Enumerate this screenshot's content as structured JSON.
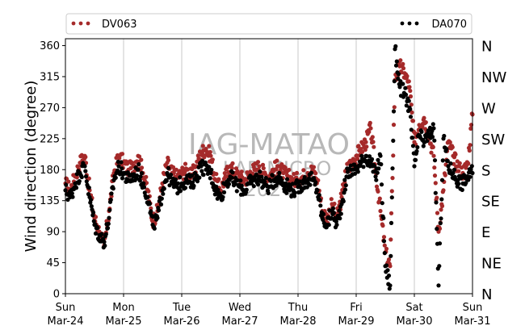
{
  "chart_data": {
    "type": "scatter",
    "title": "",
    "ylabel": "Wind direction (degree)",
    "ylim": [
      0,
      370
    ],
    "yticks": [
      0,
      45,
      90,
      135,
      180,
      225,
      270,
      315,
      360
    ],
    "compass_labels": [
      {
        "value": 0,
        "label": "N"
      },
      {
        "value": 45,
        "label": "NE"
      },
      {
        "value": 90,
        "label": "E"
      },
      {
        "value": 135,
        "label": "SE"
      },
      {
        "value": 180,
        "label": "S"
      },
      {
        "value": 225,
        "label": "SW"
      },
      {
        "value": 270,
        "label": "W"
      },
      {
        "value": 315,
        "label": "NW"
      },
      {
        "value": 360,
        "label": "N"
      }
    ],
    "x_ticks": [
      {
        "day": "Sun",
        "date": "Mar-24"
      },
      {
        "day": "Mon",
        "date": "Mar-25"
      },
      {
        "day": "Tue",
        "date": "Mar-26"
      },
      {
        "day": "Wed",
        "date": "Mar-27"
      },
      {
        "day": "Thu",
        "date": "Mar-28"
      },
      {
        "day": "Fri",
        "date": "Mar-29"
      },
      {
        "day": "Sat",
        "date": "Mar-30"
      },
      {
        "day": "Sun",
        "date": "Mar-31"
      }
    ],
    "xlim": [
      "2024-03-24 00:00",
      "2024-03-31 00:00"
    ],
    "grid": "vertical",
    "legend_position": "top",
    "watermark": [
      "IAG-MATAO",
      "LAB MICRO",
      "2024"
    ],
    "series": [
      {
        "name": "DV063",
        "color": "#a52a2a",
        "points": [
          [
            "2024-03-24 00:00",
            160
          ],
          [
            "2024-03-24 02:00",
            150
          ],
          [
            "2024-03-24 04:00",
            170
          ],
          [
            "2024-03-24 06:00",
            190
          ],
          [
            "2024-03-24 08:00",
            200
          ],
          [
            "2024-03-24 10:00",
            150
          ],
          [
            "2024-03-24 12:00",
            110
          ],
          [
            "2024-03-24 14:00",
            90
          ],
          [
            "2024-03-24 16:00",
            70
          ],
          [
            "2024-03-24 18:00",
            120
          ],
          [
            "2024-03-24 20:00",
            175
          ],
          [
            "2024-03-24 22:00",
            200
          ],
          [
            "2024-03-25 00:00",
            190
          ],
          [
            "2024-03-25 02:00",
            180
          ],
          [
            "2024-03-25 04:00",
            185
          ],
          [
            "2024-03-25 06:00",
            200
          ],
          [
            "2024-03-25 08:00",
            175
          ],
          [
            "2024-03-25 10:00",
            150
          ],
          [
            "2024-03-25 12:00",
            105
          ],
          [
            "2024-03-25 14:00",
            120
          ],
          [
            "2024-03-25 16:00",
            160
          ],
          [
            "2024-03-25 18:00",
            190
          ],
          [
            "2024-03-25 20:00",
            175
          ],
          [
            "2024-03-25 22:00",
            170
          ],
          [
            "2024-03-26 00:00",
            175
          ],
          [
            "2024-03-26 02:00",
            180
          ],
          [
            "2024-03-26 04:00",
            170
          ],
          [
            "2024-03-26 06:00",
            185
          ],
          [
            "2024-03-26 08:00",
            205
          ],
          [
            "2024-03-26 10:00",
            210
          ],
          [
            "2024-03-26 12:00",
            200
          ],
          [
            "2024-03-26 14:00",
            165
          ],
          [
            "2024-03-26 16:00",
            150
          ],
          [
            "2024-03-26 18:00",
            170
          ],
          [
            "2024-03-26 20:00",
            185
          ],
          [
            "2024-03-26 22:00",
            175
          ],
          [
            "2024-03-27 00:00",
            170
          ],
          [
            "2024-03-27 02:00",
            165
          ],
          [
            "2024-03-27 04:00",
            175
          ],
          [
            "2024-03-27 06:00",
            180
          ],
          [
            "2024-03-27 08:00",
            185
          ],
          [
            "2024-03-27 10:00",
            175
          ],
          [
            "2024-03-27 12:00",
            170
          ],
          [
            "2024-03-27 14:00",
            180
          ],
          [
            "2024-03-27 16:00",
            185
          ],
          [
            "2024-03-27 18:00",
            175
          ],
          [
            "2024-03-27 20:00",
            170
          ],
          [
            "2024-03-27 22:00",
            165
          ],
          [
            "2024-03-28 00:00",
            165
          ],
          [
            "2024-03-28 02:00",
            170
          ],
          [
            "2024-03-28 04:00",
            175
          ],
          [
            "2024-03-28 06:00",
            180
          ],
          [
            "2024-03-28 08:00",
            165
          ],
          [
            "2024-03-28 10:00",
            120
          ],
          [
            "2024-03-28 12:00",
            110
          ],
          [
            "2024-03-28 14:00",
            130
          ],
          [
            "2024-03-28 16:00",
            110
          ],
          [
            "2024-03-28 18:00",
            140
          ],
          [
            "2024-03-28 20:00",
            180
          ],
          [
            "2024-03-28 22:00",
            190
          ],
          [
            "2024-03-29 00:00",
            200
          ],
          [
            "2024-03-29 02:00",
            210
          ],
          [
            "2024-03-29 04:00",
            220
          ],
          [
            "2024-03-29 06:00",
            240
          ],
          [
            "2024-03-29 08:00",
            180
          ],
          [
            "2024-03-29 10:00",
            120
          ],
          [
            "2024-03-29 12:00",
            60
          ],
          [
            "2024-03-29 14:00",
            40
          ],
          [
            "2024-03-29 16:00",
            310
          ],
          [
            "2024-03-29 18:00",
            330
          ],
          [
            "2024-03-29 20:00",
            320
          ],
          [
            "2024-03-29 22:00",
            300
          ],
          [
            "2024-03-30 00:00",
            220
          ],
          [
            "2024-03-30 02:00",
            245
          ],
          [
            "2024-03-30 04:00",
            255
          ],
          [
            "2024-03-30 06:00",
            230
          ],
          [
            "2024-03-30 08:00",
            200
          ],
          [
            "2024-03-30 10:00",
            90
          ],
          [
            "2024-03-30 12:00",
            150
          ],
          [
            "2024-03-30 14:00",
            220
          ],
          [
            "2024-03-30 16:00",
            200
          ],
          [
            "2024-03-30 18:00",
            185
          ],
          [
            "2024-03-30 20:00",
            175
          ],
          [
            "2024-03-30 22:00",
            190
          ],
          [
            "2024-03-31 00:00",
            260
          ]
        ]
      },
      {
        "name": "DA070",
        "color": "#000000",
        "points": [
          [
            "2024-03-24 00:00",
            150
          ],
          [
            "2024-03-24 02:00",
            140
          ],
          [
            "2024-03-24 04:00",
            160
          ],
          [
            "2024-03-24 06:00",
            175
          ],
          [
            "2024-03-24 08:00",
            185
          ],
          [
            "2024-03-24 10:00",
            140
          ],
          [
            "2024-03-24 12:00",
            100
          ],
          [
            "2024-03-24 14:00",
            85
          ],
          [
            "2024-03-24 16:00",
            75
          ],
          [
            "2024-03-24 18:00",
            110
          ],
          [
            "2024-03-24 20:00",
            165
          ],
          [
            "2024-03-24 22:00",
            185
          ],
          [
            "2024-03-25 00:00",
            175
          ],
          [
            "2024-03-25 02:00",
            165
          ],
          [
            "2024-03-25 04:00",
            170
          ],
          [
            "2024-03-25 06:00",
            180
          ],
          [
            "2024-03-25 08:00",
            160
          ],
          [
            "2024-03-25 10:00",
            140
          ],
          [
            "2024-03-25 12:00",
            100
          ],
          [
            "2024-03-25 14:00",
            110
          ],
          [
            "2024-03-25 16:00",
            150
          ],
          [
            "2024-03-25 18:00",
            175
          ],
          [
            "2024-03-25 20:00",
            160
          ],
          [
            "2024-03-25 22:00",
            155
          ],
          [
            "2024-03-26 00:00",
            160
          ],
          [
            "2024-03-26 02:00",
            165
          ],
          [
            "2024-03-26 04:00",
            160
          ],
          [
            "2024-03-26 06:00",
            170
          ],
          [
            "2024-03-26 08:00",
            185
          ],
          [
            "2024-03-26 10:00",
            180
          ],
          [
            "2024-03-26 12:00",
            175
          ],
          [
            "2024-03-26 14:00",
            150
          ],
          [
            "2024-03-26 16:00",
            140
          ],
          [
            "2024-03-26 18:00",
            160
          ],
          [
            "2024-03-26 20:00",
            170
          ],
          [
            "2024-03-26 22:00",
            160
          ],
          [
            "2024-03-27 00:00",
            155
          ],
          [
            "2024-03-27 02:00",
            150
          ],
          [
            "2024-03-27 04:00",
            160
          ],
          [
            "2024-03-27 06:00",
            165
          ],
          [
            "2024-03-27 08:00",
            170
          ],
          [
            "2024-03-27 10:00",
            160
          ],
          [
            "2024-03-27 12:00",
            155
          ],
          [
            "2024-03-27 14:00",
            165
          ],
          [
            "2024-03-27 16:00",
            170
          ],
          [
            "2024-03-27 18:00",
            160
          ],
          [
            "2024-03-27 20:00",
            155
          ],
          [
            "2024-03-27 22:00",
            150
          ],
          [
            "2024-03-28 00:00",
            155
          ],
          [
            "2024-03-28 02:00",
            160
          ],
          [
            "2024-03-28 04:00",
            165
          ],
          [
            "2024-03-28 06:00",
            165
          ],
          [
            "2024-03-28 08:00",
            150
          ],
          [
            "2024-03-28 10:00",
            110
          ],
          [
            "2024-03-28 12:00",
            100
          ],
          [
            "2024-03-28 14:00",
            120
          ],
          [
            "2024-03-28 16:00",
            100
          ],
          [
            "2024-03-28 18:00",
            130
          ],
          [
            "2024-03-28 20:00",
            170
          ],
          [
            "2024-03-28 22:00",
            180
          ],
          [
            "2024-03-29 00:00",
            180
          ],
          [
            "2024-03-29 02:00",
            190
          ],
          [
            "2024-03-29 04:00",
            200
          ],
          [
            "2024-03-29 06:00",
            190
          ],
          [
            "2024-03-29 08:00",
            170
          ],
          [
            "2024-03-29 10:00",
            200
          ],
          [
            "2024-03-29 12:00",
            40
          ],
          [
            "2024-03-29 14:00",
            12
          ],
          [
            "2024-03-29 16:00",
            355
          ],
          [
            "2024-03-29 18:00",
            300
          ],
          [
            "2024-03-29 20:00",
            290
          ],
          [
            "2024-03-29 22:00",
            270
          ],
          [
            "2024-03-30 00:00",
            185
          ],
          [
            "2024-03-30 02:00",
            230
          ],
          [
            "2024-03-30 04:00",
            220
          ],
          [
            "2024-03-30 06:00",
            230
          ],
          [
            "2024-03-30 08:00",
            240
          ],
          [
            "2024-03-30 10:00",
            12
          ],
          [
            "2024-03-30 12:00",
            225
          ],
          [
            "2024-03-30 14:00",
            185
          ],
          [
            "2024-03-30 16:00",
            175
          ],
          [
            "2024-03-30 18:00",
            165
          ],
          [
            "2024-03-30 20:00",
            160
          ],
          [
            "2024-03-30 22:00",
            170
          ],
          [
            "2024-03-31 00:00",
            175
          ]
        ]
      }
    ]
  }
}
